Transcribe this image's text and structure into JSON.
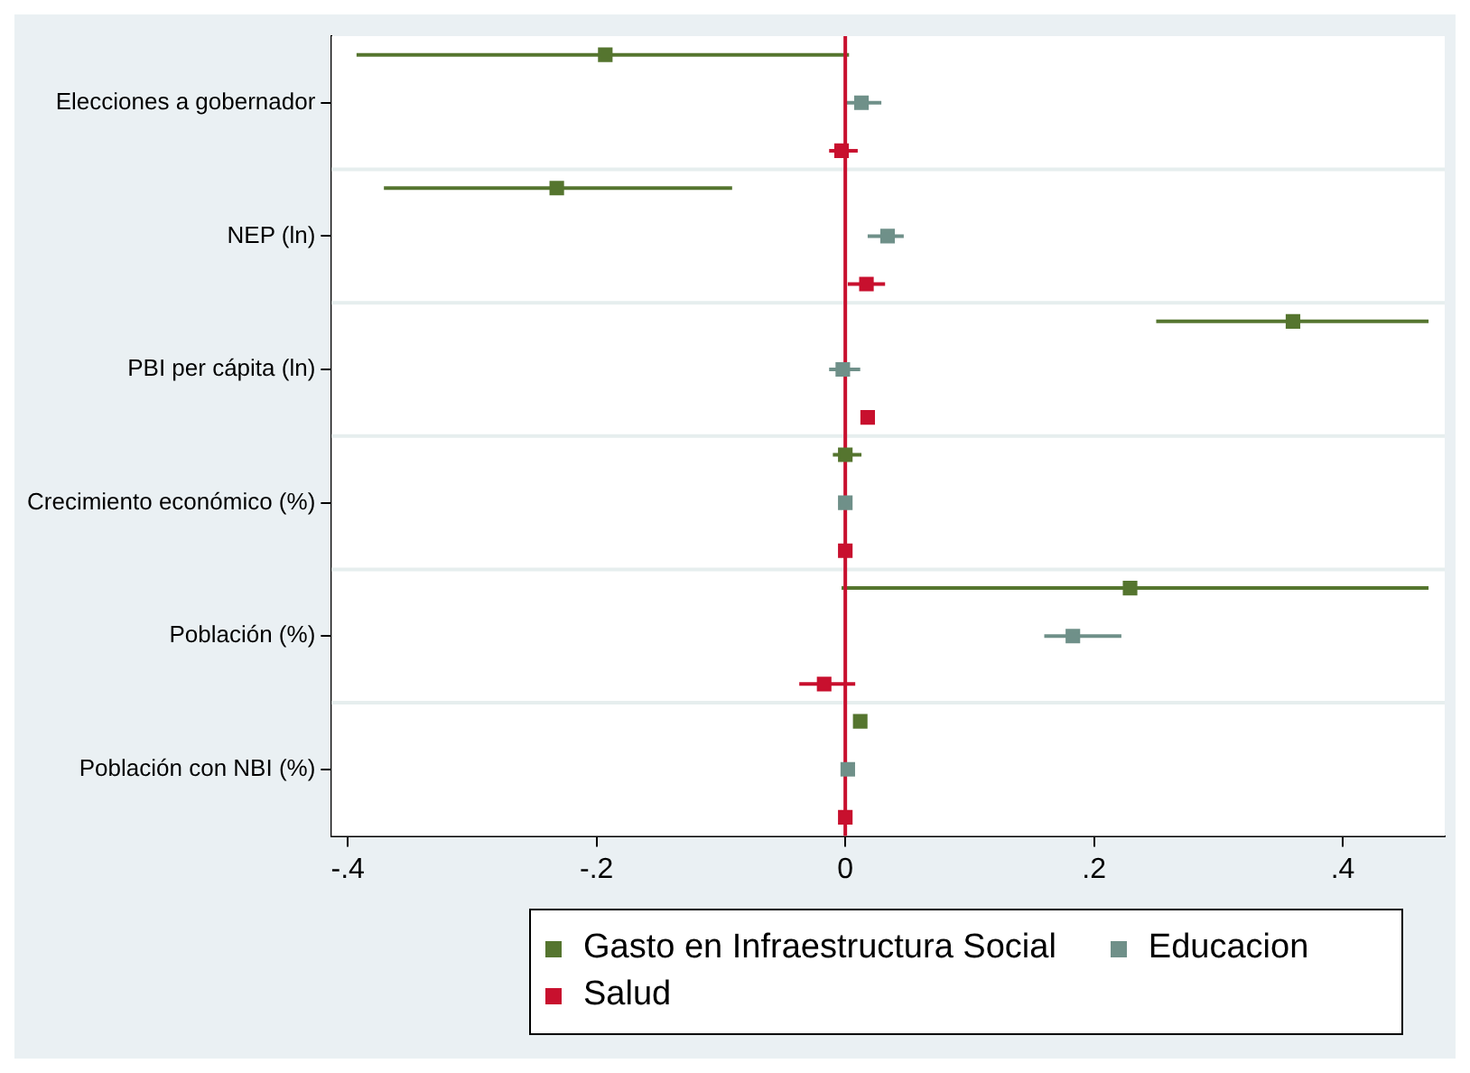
{
  "chart_data": {
    "type": "scatter",
    "orientation": "horizontal",
    "categories": [
      "Elecciones a gobernador",
      "NEP (ln)",
      "PBI per cápita (ln)",
      "Crecimiento económico (%)",
      "Población (%)",
      "Población con NBI (%)"
    ],
    "series": [
      {
        "name": "Gasto en Infraestructura Social",
        "color": "#55752f",
        "values": [
          -0.193,
          -0.232,
          0.36,
          0.0,
          0.229,
          0.012
        ],
        "errors": [
          [
            -0.393,
            0.003
          ],
          [
            -0.371,
            -0.091
          ],
          [
            0.25,
            0.469
          ],
          [
            -0.01,
            0.013
          ],
          [
            -0.003,
            0.469
          ],
          null
        ]
      },
      {
        "name": "Educacion",
        "color": "#6f9089",
        "values": [
          0.013,
          0.034,
          -0.002,
          0.0,
          0.183,
          0.002
        ],
        "errors": [
          [
            0.0,
            0.029
          ],
          [
            0.018,
            0.047
          ],
          [
            -0.013,
            0.012
          ],
          null,
          [
            0.16,
            0.222
          ],
          null
        ]
      },
      {
        "name": "Salud",
        "color": "#c8102e",
        "values": [
          -0.003,
          0.017,
          0.018,
          0.0,
          -0.017,
          0.0
        ],
        "errors": [
          [
            -0.013,
            0.01
          ],
          [
            0.002,
            0.032
          ],
          null,
          null,
          [
            -0.037,
            0.008
          ],
          null
        ]
      }
    ],
    "xlim": [
      -0.413,
      0.482
    ],
    "xticks": [
      {
        "value": -0.4,
        "label": "-.4"
      },
      {
        "value": -0.2,
        "label": "-.2"
      },
      0,
      {
        "value": 0.2,
        "label": ".2"
      },
      {
        "value": 0.4,
        "label": ".4"
      }
    ],
    "ref_lines": [
      {
        "axis": "x",
        "value": 0,
        "color": "#c8102e"
      }
    ],
    "grid": "y",
    "legend": "bottom",
    "marker": "square"
  }
}
